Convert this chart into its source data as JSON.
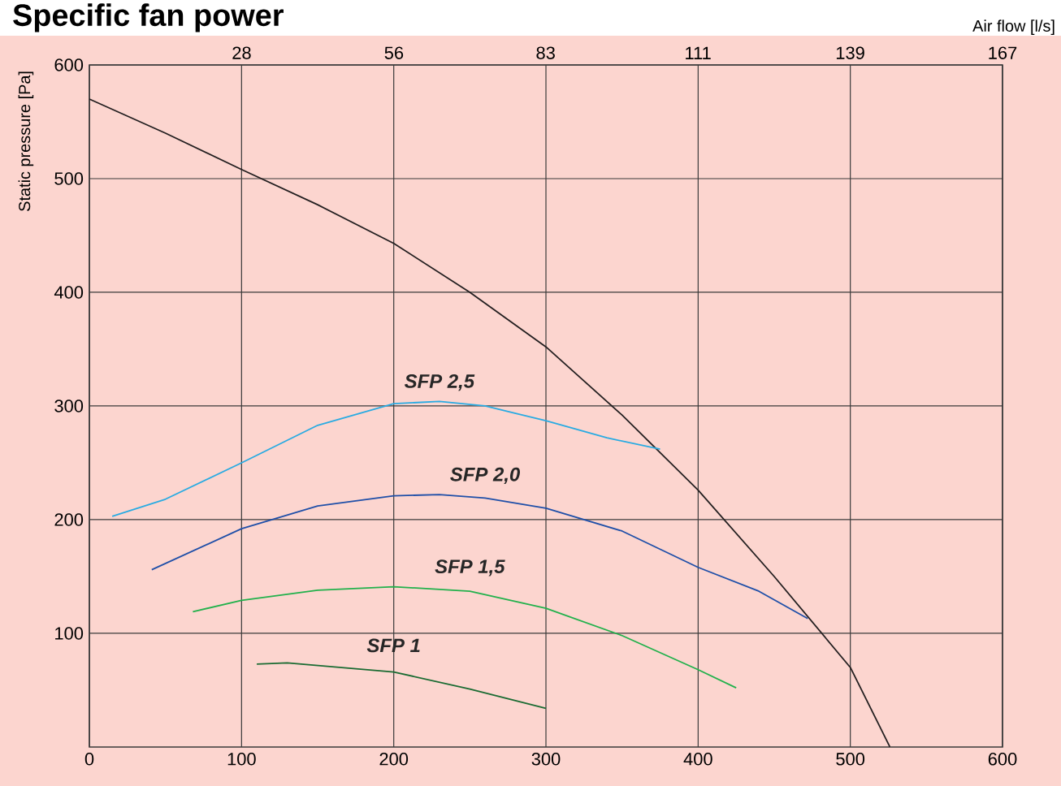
{
  "chart_data": {
    "type": "line",
    "title": "Specific fan power",
    "ylabel": "Static pressure [Pa]",
    "x2label": "Air flow [l/s]",
    "xlim": [
      0,
      600
    ],
    "xticks": [
      0,
      100,
      200,
      300,
      400,
      500,
      600
    ],
    "x2lim": [
      0,
      166.7
    ],
    "x2ticks": [
      {
        "value": 27.8,
        "label": "28"
      },
      {
        "value": 55.6,
        "label": "56"
      },
      {
        "value": 83.3,
        "label": "83"
      },
      {
        "value": 111.1,
        "label": "111"
      },
      {
        "value": 138.9,
        "label": "139"
      },
      {
        "value": 166.7,
        "label": "167"
      }
    ],
    "ylim": [
      0,
      600
    ],
    "yticks": [
      100,
      200,
      300,
      400,
      500,
      600
    ],
    "grid": true,
    "marker": "none",
    "line_style": "solid",
    "series": [
      {
        "color": "#231f20",
        "x": [
          0,
          50,
          100,
          150,
          200,
          250,
          300,
          350,
          400,
          450,
          500,
          526
        ],
        "values": [
          570,
          540,
          508,
          477,
          443,
          400,
          352,
          292,
          226,
          150,
          70,
          0
        ]
      },
      {
        "name": "SFP 2,5",
        "color": "#29abe2",
        "x": [
          15,
          50,
          100,
          150,
          200,
          230,
          260,
          300,
          340,
          375
        ],
        "values": [
          203,
          218,
          250,
          283,
          302,
          304,
          300,
          287,
          272,
          262
        ]
      },
      {
        "name": "SFP 2,0",
        "color": "#1f4fa8",
        "x": [
          41,
          100,
          150,
          200,
          230,
          260,
          300,
          350,
          400,
          440,
          472
        ],
        "values": [
          156,
          192,
          212,
          221,
          222,
          219,
          210,
          190,
          158,
          137,
          113
        ]
      },
      {
        "name": "SFP 1,5",
        "color": "#22b14c",
        "x": [
          68,
          100,
          150,
          200,
          250,
          300,
          350,
          400,
          425
        ],
        "values": [
          119,
          129,
          138,
          141,
          137,
          122,
          98,
          68,
          52
        ]
      },
      {
        "name": "SFP 1",
        "color": "#1a6b32",
        "x": [
          110,
          130,
          200,
          250,
          300
        ],
        "values": [
          73,
          74,
          66,
          51,
          34
        ]
      }
    ]
  }
}
